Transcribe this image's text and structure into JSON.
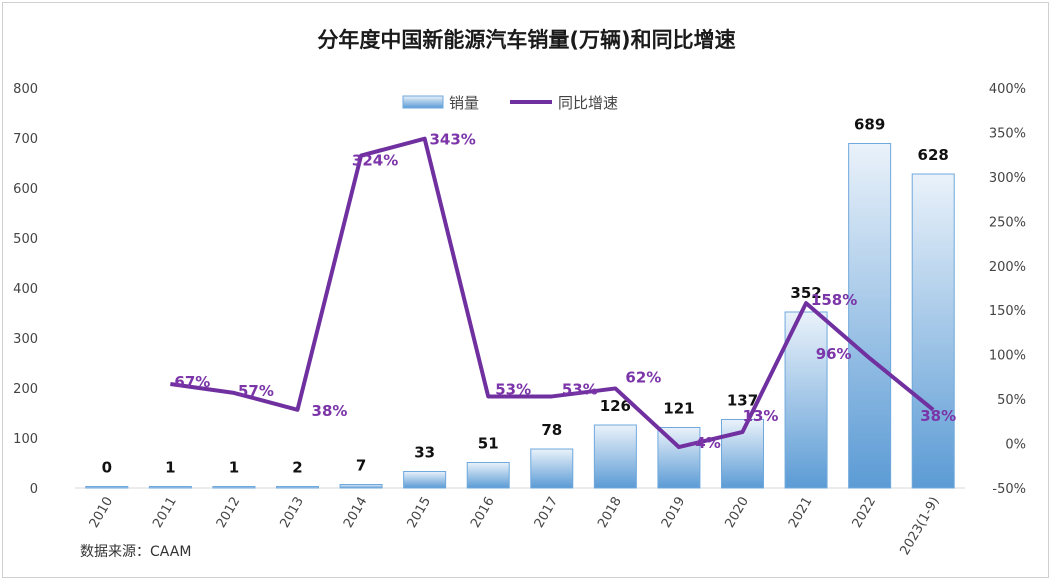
{
  "chart_data": {
    "type": "bar+line",
    "title": "分年度中国新能源汽车销量(万辆)和同比增速",
    "categories": [
      "2010",
      "2011",
      "2012",
      "2013",
      "2014",
      "2015",
      "2016",
      "2017",
      "2018",
      "2019",
      "2020",
      "2021",
      "2022",
      "2023(1-9)"
    ],
    "series": [
      {
        "name": "销量",
        "type": "bar",
        "axis": "left",
        "values": [
          0.5,
          1,
          1,
          2,
          7,
          33,
          51,
          78,
          126,
          121,
          137,
          352,
          689,
          628
        ],
        "labels": [
          "0",
          "1",
          "1",
          "2",
          "7",
          "33",
          "51",
          "78",
          "126",
          "121",
          "137",
          "352",
          "689",
          "628"
        ]
      },
      {
        "name": "同比增速",
        "type": "line",
        "axis": "right",
        "values": [
          null,
          67,
          57,
          38,
          324,
          343,
          53,
          53,
          62,
          -4,
          13,
          158,
          96,
          38
        ],
        "labels": [
          "",
          "67%",
          "57%",
          "38%",
          "324%",
          "343%",
          "53%",
          "53%",
          "62%",
          "-4%",
          "13%",
          "158%",
          "96%",
          "38%"
        ]
      }
    ],
    "y_left": {
      "min": 0,
      "max": 800,
      "step": 100,
      "ticks": [
        "0",
        "100",
        "200",
        "300",
        "400",
        "500",
        "600",
        "700",
        "800"
      ]
    },
    "y_right": {
      "min": -50,
      "max": 400,
      "step": 50,
      "ticks": [
        "-50%",
        "0%",
        "50%",
        "100%",
        "150%",
        "200%",
        "250%",
        "300%",
        "350%",
        "400%"
      ]
    },
    "legend": {
      "position": "top-center",
      "items": [
        "销量",
        "同比增速"
      ]
    },
    "grid": false,
    "colors": {
      "bar_top": "#eaf2fa",
      "bar_bottom": "#5b9bd5",
      "bar_stroke": "#6fa8dc",
      "line": "#7030a0",
      "rate_label": "#7b35a8"
    },
    "source": "数据来源：CAAM"
  }
}
